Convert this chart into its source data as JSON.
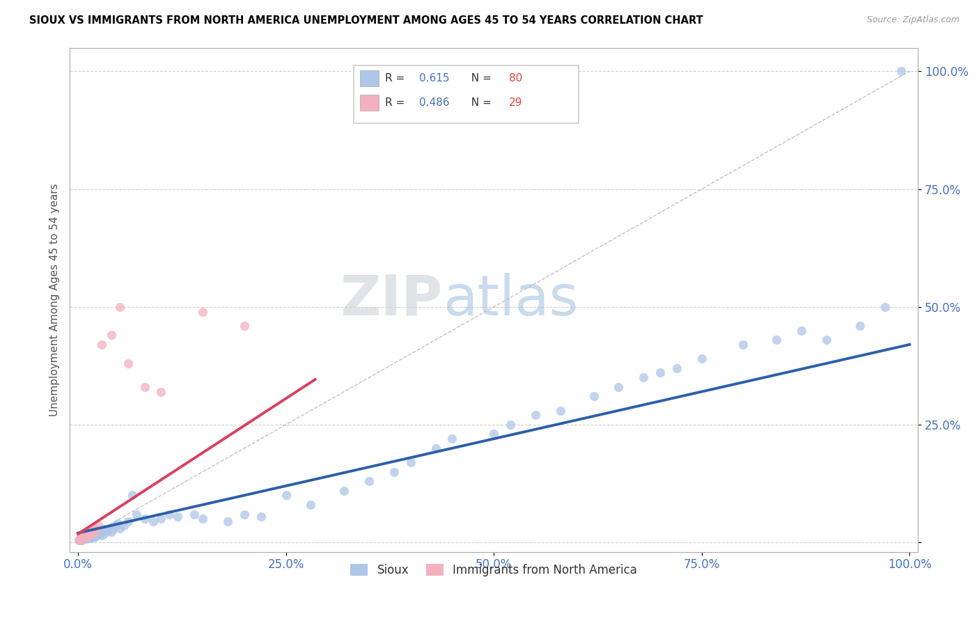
{
  "title": "SIOUX VS IMMIGRANTS FROM NORTH AMERICA UNEMPLOYMENT AMONG AGES 45 TO 54 YEARS CORRELATION CHART",
  "source": "Source: ZipAtlas.com",
  "ylabel": "Unemployment Among Ages 45 to 54 years",
  "legend_label1": "Sioux",
  "legend_label2": "Immigrants from North America",
  "R1": 0.615,
  "N1": 80,
  "R2": 0.486,
  "N2": 29,
  "color1": "#aec6e8",
  "color2": "#f4b0be",
  "line_color1": "#2c5fa8",
  "line_color2": "#d94060",
  "diagonal_color": "#c8a8b8",
  "watermark_zip": "ZIP",
  "watermark_atlas": "atlas",
  "sioux_x": [
    0.002,
    0.003,
    0.004,
    0.005,
    0.005,
    0.006,
    0.007,
    0.008,
    0.009,
    0.01,
    0.01,
    0.011,
    0.012,
    0.013,
    0.014,
    0.015,
    0.015,
    0.016,
    0.017,
    0.018,
    0.018,
    0.019,
    0.02,
    0.02,
    0.021,
    0.022,
    0.023,
    0.025,
    0.026,
    0.027,
    0.028,
    0.03,
    0.03,
    0.032,
    0.035,
    0.038,
    0.04,
    0.042,
    0.045,
    0.048,
    0.05,
    0.055,
    0.06,
    0.065,
    0.07,
    0.08,
    0.09,
    0.1,
    0.11,
    0.12,
    0.14,
    0.15,
    0.18,
    0.2,
    0.22,
    0.25,
    0.28,
    0.32,
    0.35,
    0.38,
    0.4,
    0.43,
    0.45,
    0.5,
    0.52,
    0.55,
    0.58,
    0.62,
    0.65,
    0.68,
    0.7,
    0.72,
    0.75,
    0.8,
    0.84,
    0.87,
    0.9,
    0.94,
    0.97,
    0.99
  ],
  "sioux_y": [
    0.005,
    0.008,
    0.004,
    0.01,
    0.006,
    0.008,
    0.012,
    0.01,
    0.007,
    0.015,
    0.008,
    0.012,
    0.01,
    0.014,
    0.009,
    0.015,
    0.01,
    0.012,
    0.018,
    0.01,
    0.014,
    0.016,
    0.012,
    0.018,
    0.02,
    0.015,
    0.022,
    0.02,
    0.018,
    0.025,
    0.015,
    0.022,
    0.028,
    0.02,
    0.025,
    0.03,
    0.022,
    0.028,
    0.035,
    0.04,
    0.03,
    0.035,
    0.045,
    0.1,
    0.06,
    0.05,
    0.045,
    0.05,
    0.06,
    0.055,
    0.06,
    0.05,
    0.045,
    0.06,
    0.055,
    0.1,
    0.08,
    0.11,
    0.13,
    0.15,
    0.17,
    0.2,
    0.22,
    0.23,
    0.25,
    0.27,
    0.28,
    0.31,
    0.33,
    0.35,
    0.36,
    0.37,
    0.39,
    0.42,
    0.43,
    0.45,
    0.43,
    0.46,
    0.5,
    1.0
  ],
  "immig_x": [
    0.001,
    0.002,
    0.003,
    0.004,
    0.005,
    0.005,
    0.006,
    0.007,
    0.008,
    0.009,
    0.01,
    0.01,
    0.012,
    0.013,
    0.014,
    0.015,
    0.016,
    0.018,
    0.02,
    0.022,
    0.025,
    0.028,
    0.04,
    0.05,
    0.06,
    0.08,
    0.1,
    0.15,
    0.2
  ],
  "immig_y": [
    0.005,
    0.008,
    0.006,
    0.01,
    0.008,
    0.012,
    0.01,
    0.015,
    0.012,
    0.018,
    0.01,
    0.02,
    0.015,
    0.025,
    0.018,
    0.022,
    0.028,
    0.02,
    0.03,
    0.025,
    0.035,
    0.42,
    0.44,
    0.5,
    0.38,
    0.33,
    0.32,
    0.49,
    0.46
  ],
  "xlim": [
    -0.01,
    1.01
  ],
  "ylim": [
    -0.02,
    1.05
  ],
  "xticks": [
    0.0,
    0.25,
    0.5,
    0.75,
    1.0
  ],
  "xtick_labels": [
    "0.0%",
    "25.0%",
    "50.0%",
    "75.0%",
    "100.0%"
  ],
  "yticks": [
    0.0,
    0.25,
    0.5,
    0.75,
    1.0
  ],
  "ytick_labels": [
    "",
    "25.0%",
    "50.0%",
    "75.0%",
    "100.0%"
  ],
  "tick_color": "#4472c4",
  "grid_color": "#cccccc",
  "spine_color": "#aaaaaa"
}
